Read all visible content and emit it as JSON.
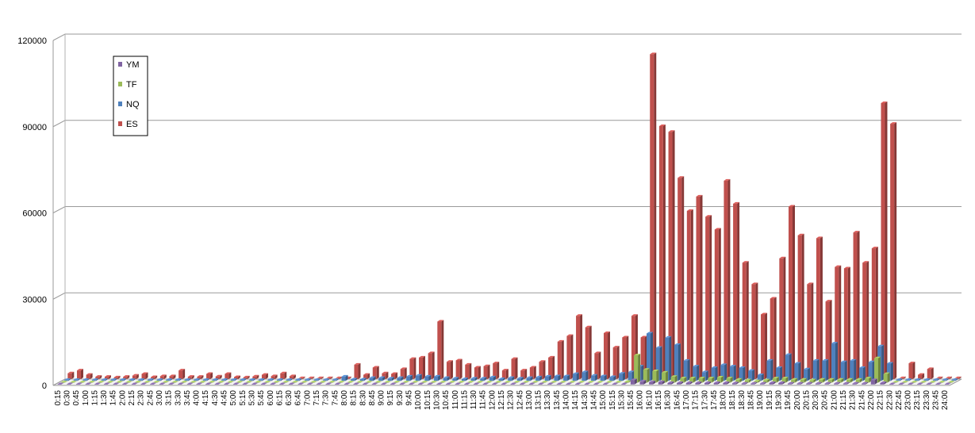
{
  "chart_data": {
    "type": "bar",
    "title": "",
    "xlabel": "",
    "ylabel": "",
    "ylim": [
      0,
      120000
    ],
    "yticks": [
      "0",
      "30000",
      "60000",
      "90000",
      "120000"
    ],
    "grid": true,
    "legend_position": "top-left",
    "categories": [
      "0:15",
      "0:30",
      "0:45",
      "1:00",
      "1:15",
      "1:30",
      "1:45",
      "2:00",
      "2:15",
      "2:30",
      "2:45",
      "3:00",
      "3:15",
      "3:30",
      "3:45",
      "4:00",
      "4:15",
      "4:30",
      "4:45",
      "5:00",
      "5:15",
      "5:30",
      "5:45",
      "6:00",
      "6:15",
      "6:30",
      "6:45",
      "7:00",
      "7:15",
      "7:30",
      "7:45",
      "8:00",
      "8:15",
      "8:30",
      "8:45",
      "9:00",
      "9:15",
      "9:30",
      "9:45",
      "10:00",
      "10:15",
      "10:30",
      "10:45",
      "11:00",
      "11:15",
      "11:30",
      "11:45",
      "12:00",
      "12:15",
      "12:30",
      "12:45",
      "13:00",
      "13:15",
      "13:30",
      "13:45",
      "14:00",
      "14:15",
      "14:30",
      "14:45",
      "15:00",
      "15:15",
      "15:30",
      "15:45",
      "16:00",
      "16:10",
      "16:15",
      "16:30",
      "16:45",
      "17:00",
      "17:15",
      "17:30",
      "17:45",
      "18:00",
      "18:15",
      "18:30",
      "18:45",
      "19:00",
      "19:15",
      "19:30",
      "19:45",
      "20:00",
      "20:15",
      "20:30",
      "20:45",
      "21:00",
      "21:15",
      "21:30",
      "21:45",
      "22:00",
      "22:15",
      "22:30",
      "22:45",
      "23:00",
      "23:15",
      "23:30",
      "23:45",
      "24:00"
    ],
    "series": [
      {
        "name": "ES",
        "color": "#C0504D",
        "values": [
          2000,
          3000,
          1500,
          800,
          800,
          600,
          800,
          1200,
          1800,
          700,
          1000,
          1000,
          3000,
          800,
          800,
          1800,
          900,
          1800,
          700,
          600,
          900,
          1500,
          1000,
          2000,
          1000,
          300,
          300,
          300,
          300,
          300,
          300,
          5000,
          1500,
          4000,
          2000,
          1800,
          3500,
          7000,
          7500,
          9000,
          20000,
          6000,
          6500,
          5000,
          4000,
          4500,
          5500,
          3000,
          7000,
          3000,
          4000,
          6000,
          7500,
          13000,
          15000,
          22000,
          18000,
          9000,
          16000,
          11000,
          14500,
          22000,
          14500,
          113000,
          88000,
          86000,
          70000,
          58500,
          63500,
          56500,
          52000,
          69000,
          61000,
          40500,
          33000,
          22500,
          28000,
          42000,
          60000,
          50000,
          33000,
          49000,
          27000,
          39000,
          38500,
          51000,
          40500,
          45500,
          96000,
          88800,
          300,
          5500,
          1500,
          3500,
          300,
          300,
          300
        ]
      },
      {
        "name": "NQ",
        "color": "#4F81BD",
        "values": [
          300,
          300,
          300,
          300,
          300,
          300,
          300,
          300,
          300,
          300,
          300,
          300,
          300,
          300,
          300,
          300,
          300,
          300,
          300,
          300,
          300,
          300,
          300,
          300,
          300,
          300,
          300,
          300,
          300,
          300,
          1500,
          500,
          500,
          1000,
          1000,
          800,
          1000,
          1500,
          1800,
          1500,
          1500,
          1000,
          800,
          600,
          800,
          800,
          1200,
          600,
          1000,
          800,
          1000,
          1200,
          1500,
          1600,
          1600,
          2400,
          3000,
          1800,
          1600,
          1300,
          2500,
          3000,
          5000,
          16500,
          11500,
          15000,
          12500,
          7000,
          5000,
          3000,
          4500,
          5500,
          5000,
          4500,
          3500,
          2000,
          7000,
          4500,
          9000,
          6000,
          4000,
          7000,
          7000,
          13000,
          6500,
          7000,
          4500,
          6500,
          12000,
          6000,
          300,
          300,
          300,
          300,
          300,
          300,
          300
        ]
      },
      {
        "name": "TF",
        "color": "#9BBB59",
        "values": [
          100,
          100,
          100,
          100,
          100,
          100,
          100,
          100,
          100,
          100,
          100,
          100,
          100,
          100,
          100,
          100,
          100,
          100,
          100,
          100,
          100,
          100,
          100,
          100,
          100,
          100,
          100,
          100,
          100,
          100,
          100,
          100,
          100,
          100,
          100,
          100,
          100,
          100,
          100,
          100,
          100,
          100,
          100,
          100,
          100,
          100,
          100,
          100,
          100,
          100,
          100,
          100,
          100,
          100,
          100,
          100,
          100,
          100,
          100,
          100,
          100,
          300,
          9500,
          4500,
          4000,
          3500,
          2000,
          1500,
          1500,
          1500,
          1500,
          1800,
          1500,
          1000,
          800,
          500,
          800,
          1500,
          1500,
          1000,
          1000,
          800,
          1000,
          1000,
          1000,
          1000,
          1000,
          1500,
          8500,
          3000,
          100,
          100,
          100,
          100,
          100,
          100,
          100
        ]
      },
      {
        "name": "YM",
        "color": "#8064A2",
        "values": [
          100,
          100,
          100,
          100,
          100,
          100,
          100,
          100,
          100,
          100,
          100,
          100,
          100,
          100,
          100,
          100,
          100,
          100,
          100,
          100,
          100,
          100,
          100,
          100,
          100,
          100,
          100,
          100,
          100,
          100,
          100,
          100,
          100,
          100,
          100,
          100,
          100,
          100,
          100,
          100,
          100,
          100,
          100,
          100,
          100,
          100,
          100,
          100,
          100,
          100,
          100,
          100,
          100,
          100,
          100,
          100,
          100,
          100,
          100,
          100,
          100,
          100,
          1500,
          1000,
          800,
          800,
          500,
          500,
          500,
          500,
          500,
          500,
          500,
          400,
          300,
          300,
          300,
          500,
          500,
          300,
          300,
          300,
          300,
          300,
          300,
          300,
          300,
          300,
          1500,
          500,
          100,
          100,
          100,
          100,
          100,
          100,
          100
        ]
      }
    ],
    "legend_order": [
      "YM",
      "TF",
      "NQ",
      "ES"
    ]
  }
}
